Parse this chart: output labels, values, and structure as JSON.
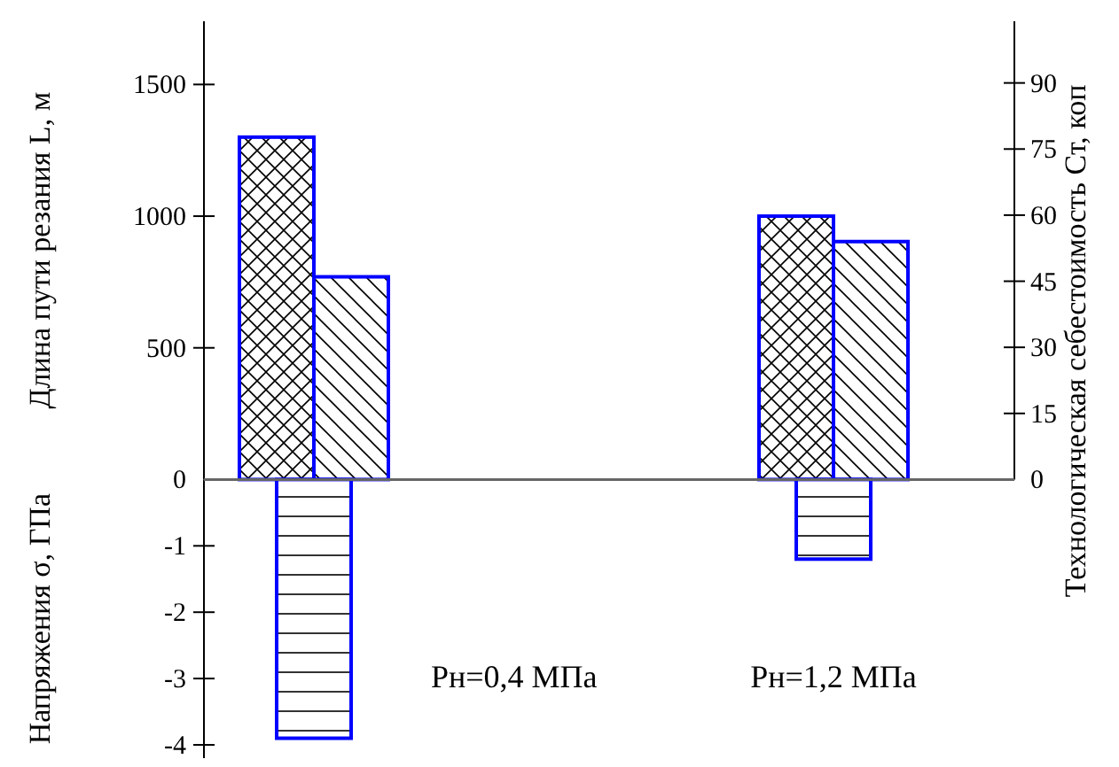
{
  "chart_data": [
    {
      "type": "bar",
      "categories": [
        null,
        null
      ],
      "tick_labels": "y",
      "ylabel": "Длина пути резания L, м",
      "y2label": "Технологическая себестоимость Cт, коп",
      "ylim": [
        0,
        1740
      ],
      "yticks": [
        0,
        500,
        1000,
        1500
      ],
      "y2lim": [
        0,
        104
      ],
      "y2ticks": [
        0,
        15,
        30,
        45,
        60,
        75,
        90
      ],
      "series": [
        {
          "color": "#0000ff",
          "values": [
            1300,
            1000
          ]
        },
        {
          "color": "#0000ff",
          "axis": "y2",
          "values": [
            46,
            54
          ]
        }
      ]
    },
    {
      "type": "bar",
      "categories": [
        null,
        null
      ],
      "annotations": [
        "Pн=0,4 МПа",
        "Pн=1,2 МПа"
      ],
      "ylabel": "Напряжения σ, ГПа",
      "ylim": [
        -4.2,
        0
      ],
      "yticks": [
        -4,
        -3,
        -2,
        -1
      ],
      "series": [
        {
          "color": "#0000ff",
          "values": [
            -3.9,
            -1.2
          ]
        }
      ]
    }
  ]
}
